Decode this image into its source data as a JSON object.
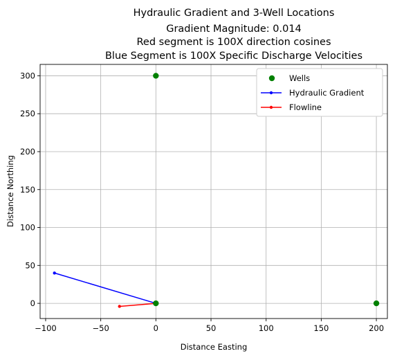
{
  "chart_data": {
    "type": "scatter",
    "title_lines": [
      "Hydraulic Gradient and 3-Well Locations",
      "Gradient Magnitude: 0.014",
      "Red segment is 100X direction cosines",
      "Blue Segment is 100X Specific Discharge Velocities"
    ],
    "xlabel": "Distance Easting",
    "ylabel": "Distance Northing",
    "xlim": [
      -105,
      210
    ],
    "ylim": [
      -20,
      315
    ],
    "xticks": [
      -100,
      -50,
      0,
      50,
      100,
      150,
      200
    ],
    "yticks": [
      0,
      50,
      100,
      150,
      200,
      250,
      300
    ],
    "xtick_labels": [
      "−100",
      "−50",
      "0",
      "50",
      "100",
      "150",
      "200"
    ],
    "ytick_labels": [
      "0",
      "50",
      "100",
      "150",
      "200",
      "250",
      "300"
    ],
    "grid": true,
    "legend_position": "top-right",
    "series": [
      {
        "name": "Wells",
        "kind": "markers",
        "color": "#008000",
        "points": [
          [
            0,
            300
          ],
          [
            0,
            0
          ],
          [
            200,
            0
          ]
        ]
      },
      {
        "name": "Hydraulic Gradient",
        "kind": "line",
        "color": "#0000ff",
        "points": [
          [
            0,
            0
          ],
          [
            -92,
            40
          ]
        ]
      },
      {
        "name": "Flowline",
        "kind": "line",
        "color": "#ff0000",
        "points": [
          [
            0,
            0
          ],
          [
            -33,
            -4
          ]
        ]
      }
    ]
  }
}
